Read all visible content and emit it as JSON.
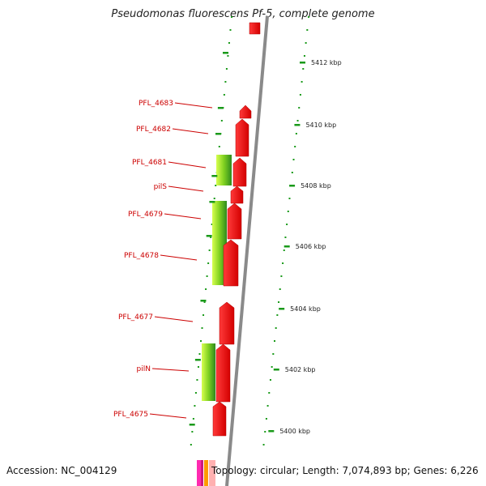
{
  "title": "Pseudomonas fluorescens Pf-5, complete genome",
  "accession": "Accession: NC_004129",
  "topology": "Topology: circular; Length: 7,074,893 bp; Genes: 6,226",
  "colors": {
    "backbone": "#8a8a8a",
    "cds": "#ff1a1a",
    "gc_light": "#c8ff3c",
    "gc_dark": "#2e8b1e",
    "dots": "#1a9a1a",
    "label": "#cc0000"
  },
  "scale_ticks": [
    {
      "label": "5412 kbp"
    },
    {
      "label": "5410 kbp"
    },
    {
      "label": "5408 kbp"
    },
    {
      "label": "5406 kbp"
    },
    {
      "label": "5404 kbp"
    },
    {
      "label": "5402 kbp"
    },
    {
      "label": "5400 kbp"
    }
  ],
  "genes": [
    {
      "label": "PFL_4683"
    },
    {
      "label": "PFL_4682"
    },
    {
      "label": "PFL_4681"
    },
    {
      "label": "pilS"
    },
    {
      "label": "PFL_4679"
    },
    {
      "label": "PFL_4678"
    },
    {
      "label": "PFL_4677"
    },
    {
      "label": "pilN"
    },
    {
      "label": "PFL_4675"
    }
  ]
}
